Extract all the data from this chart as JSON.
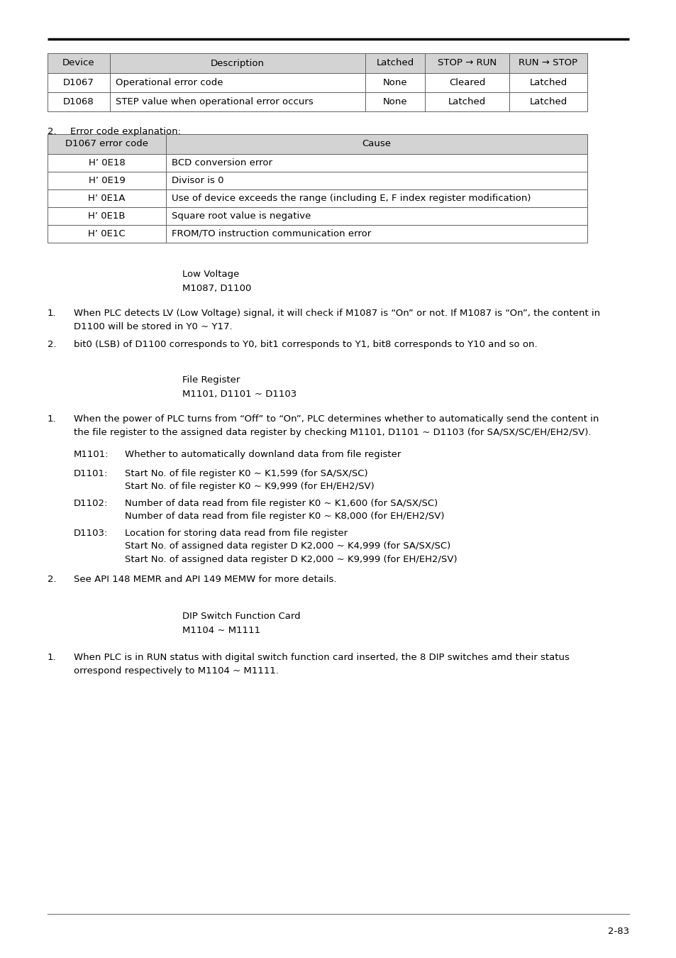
{
  "page_width": 9.54,
  "page_height": 13.5,
  "page_number": "2-83",
  "table1": {
    "headers": [
      "Device",
      "Description",
      "Latched",
      "STOP → RUN",
      "RUN → STOP"
    ],
    "rows": [
      [
        "D1067",
        "Operational error code",
        "None",
        "Cleared",
        "Latched"
      ],
      [
        "D1068",
        "STEP value when operational error occurs",
        "None",
        "Latched",
        "Latched"
      ]
    ],
    "header_bg": "#d3d3d3",
    "font_size": 9.5
  },
  "table2": {
    "headers": [
      "D1067 error code",
      "Cause"
    ],
    "rows": [
      [
        "H’ 0E18",
        "BCD conversion error"
      ],
      [
        "H’ 0E19",
        "Divisor is 0"
      ],
      [
        "H’ 0E1A",
        "Use of device exceeds the range (including E, F index register modification)"
      ],
      [
        "H’ 0E1B",
        "Square root value is negative"
      ],
      [
        "H’ 0E1C",
        "FROM/TO instruction communication error"
      ]
    ],
    "header_bg": "#d3d3d3",
    "font_size": 9.5
  },
  "font_size_body": 9.5
}
